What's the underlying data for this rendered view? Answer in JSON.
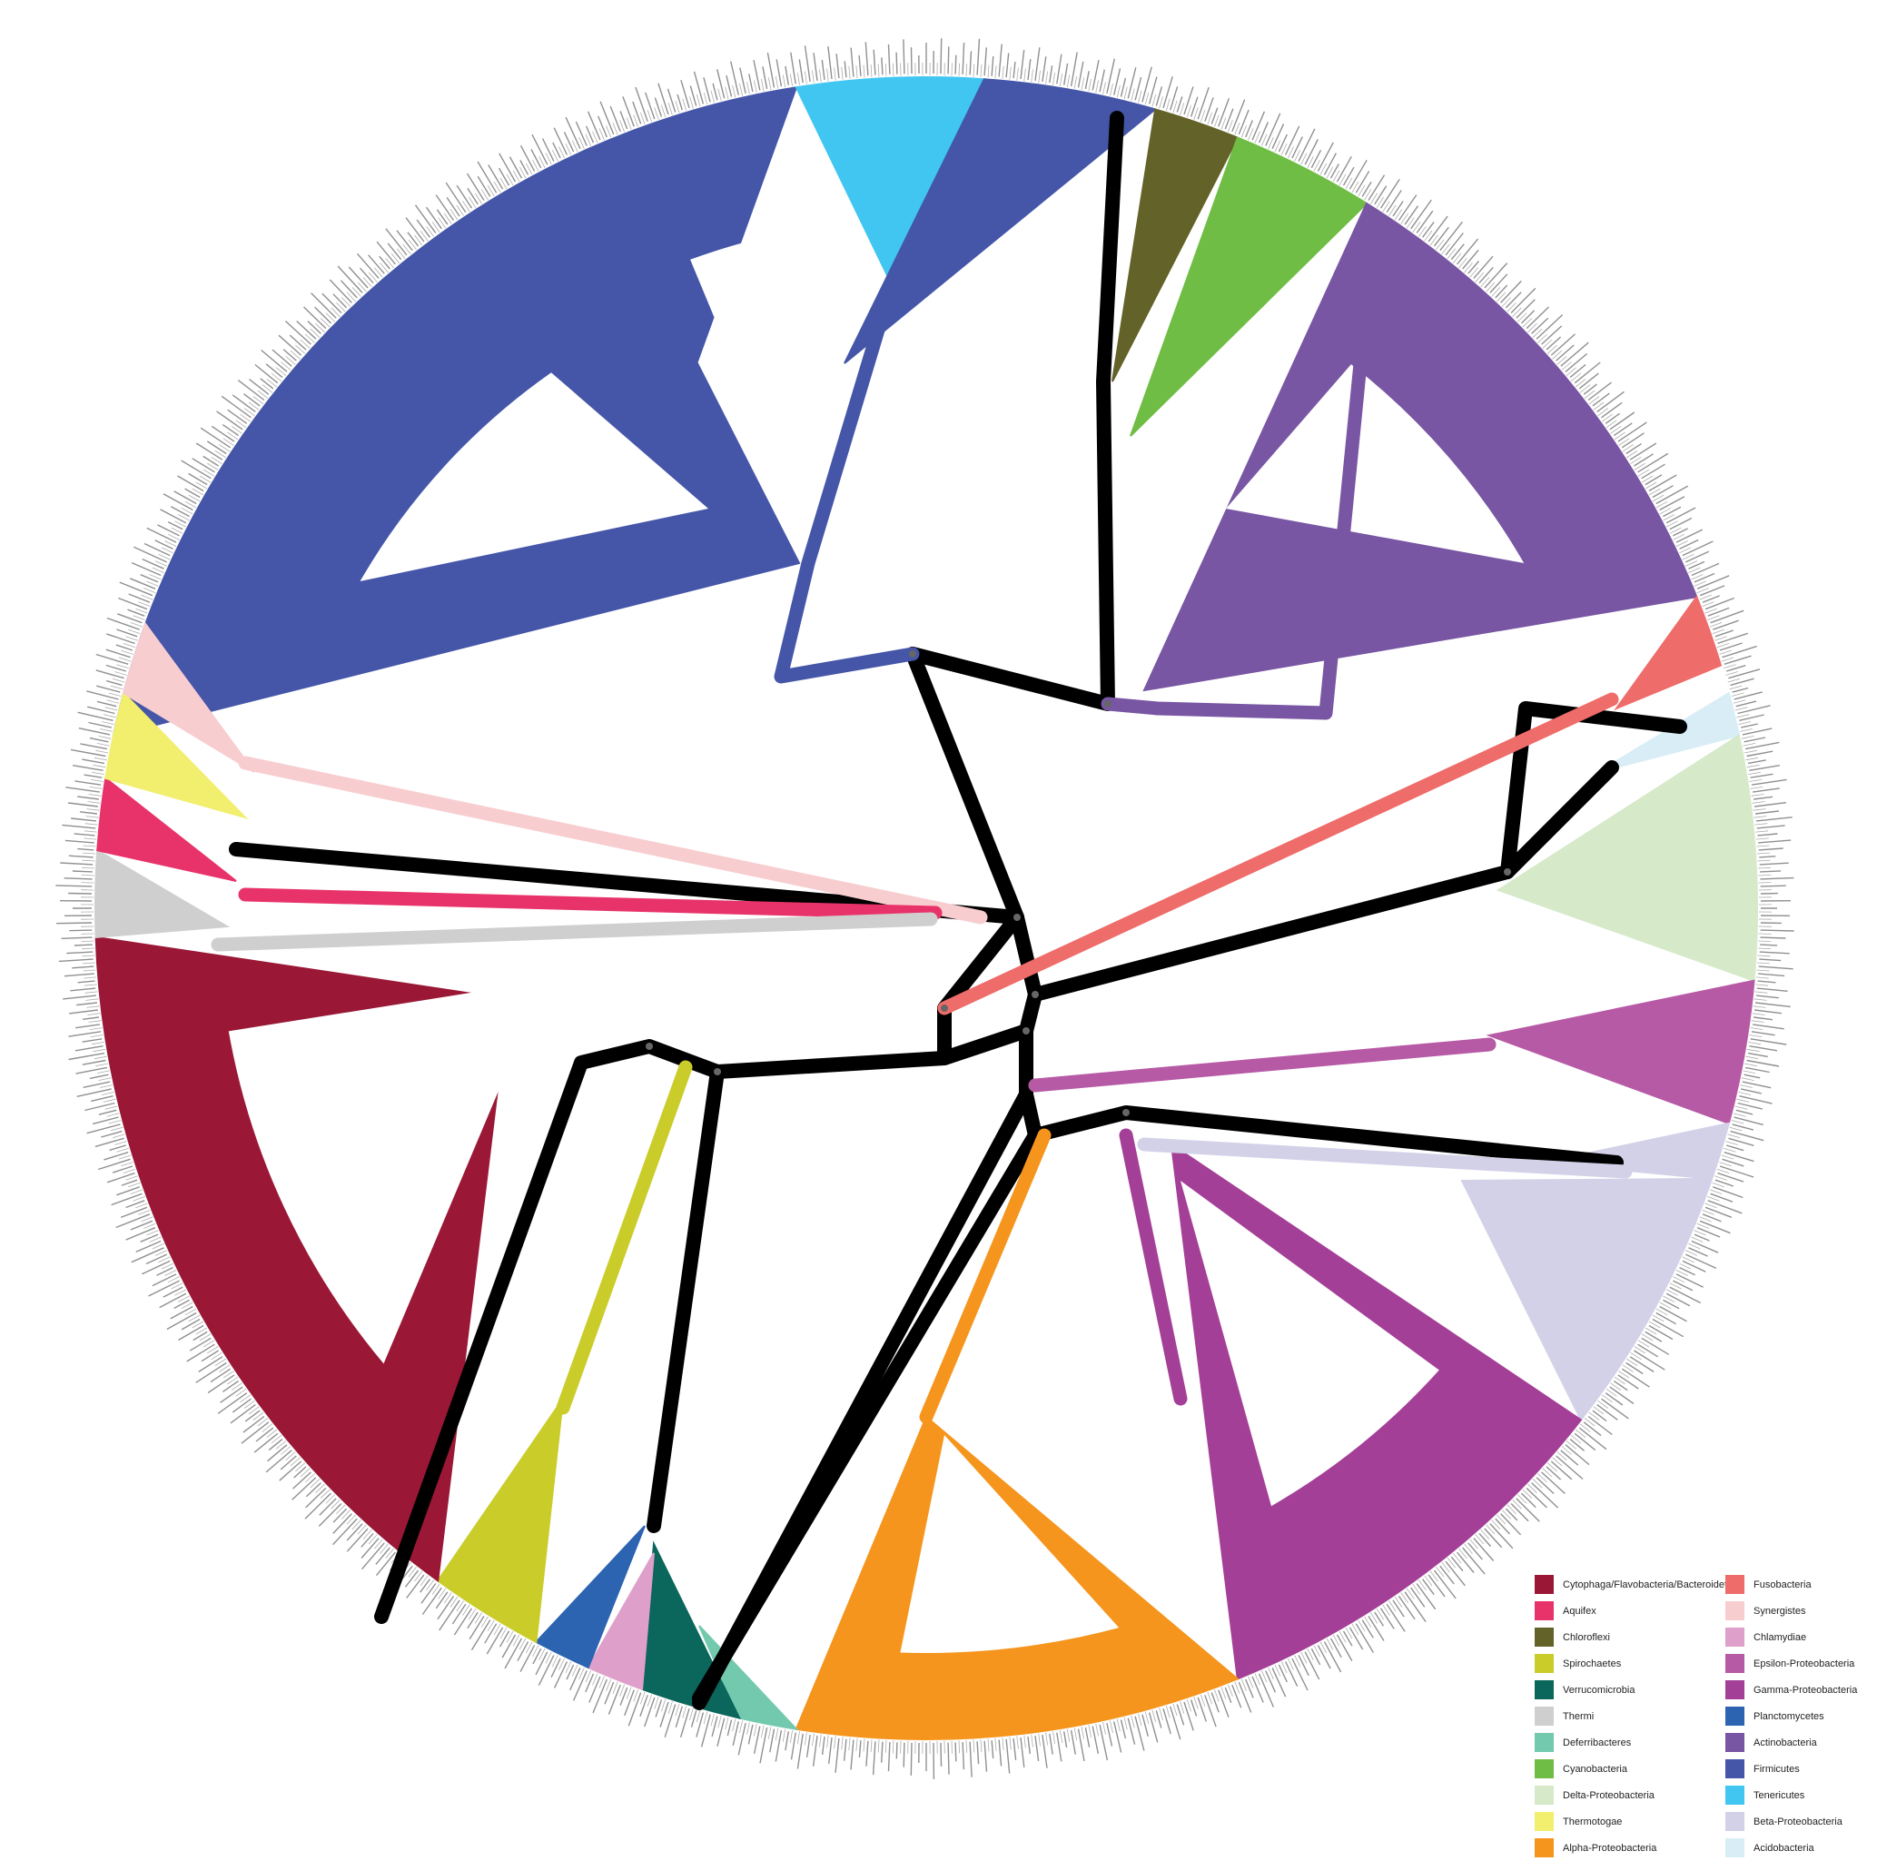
{
  "figure": {
    "type": "circular-phylogenetic-tree",
    "clade_colors": {
      "bacteroidetes": "#9a1836",
      "aquifex": "#e8336a",
      "chloroflexi": "#636228",
      "spirochaetes": "#cacc2a",
      "verrucomicrobia": "#0b665b",
      "thermi": "#cfcfcf",
      "deferribacteres": "#72c9ad",
      "cyanobacteria": "#6fbd44",
      "delta_proteobacteria": "#d6eac9",
      "thermotogae": "#f2ee6e",
      "alpha_proteobacteria": "#f5951d",
      "fusobacteria": "#ee6c6a",
      "synergistes": "#f8cdd0",
      "chlamydiae": "#dea0ca",
      "epsilon_proteobacteria": "#b75aa6",
      "gamma_proteobacteria": "#a43f97",
      "planctomycetes": "#2c64b1",
      "actinobacteria": "#7856a3",
      "firmicutes": "#4556a8",
      "tenericutes": "#41c6f1",
      "beta_proteobacteria": "#d3d1e8",
      "acidobacteria": "#d8edf5",
      "backbone": "#000000"
    }
  },
  "legend": {
    "items": [
      {
        "label": "Cytophaga/Flavobacteria/Bacteroidetes",
        "color": "#9a1836"
      },
      {
        "label": "Fusobacteria",
        "color": "#ee6c6a"
      },
      {
        "label": "Aquifex",
        "color": "#e8336a"
      },
      {
        "label": "Synergistes",
        "color": "#f8cdd0"
      },
      {
        "label": "Chloroflexi",
        "color": "#636228"
      },
      {
        "label": "Chlamydiae",
        "color": "#dea0ca"
      },
      {
        "label": "Spirochaetes",
        "color": "#cacc2a"
      },
      {
        "label": "Epsilon-Proteobacteria",
        "color": "#b75aa6"
      },
      {
        "label": "Verrucomicrobia",
        "color": "#0b665b"
      },
      {
        "label": "Gamma-Proteobacteria",
        "color": "#a43f97"
      },
      {
        "label": "Thermi",
        "color": "#cfcfcf"
      },
      {
        "label": "Planctomycetes",
        "color": "#2c64b1"
      },
      {
        "label": "Deferribacteres",
        "color": "#72c9ad"
      },
      {
        "label": "Actinobacteria",
        "color": "#7856a3"
      },
      {
        "label": "Cyanobacteria",
        "color": "#6fbd44"
      },
      {
        "label": "Firmicutes",
        "color": "#4556a8"
      },
      {
        "label": "Delta-Proteobacteria",
        "color": "#d6eac9"
      },
      {
        "label": "Tenericutes",
        "color": "#41c6f1"
      },
      {
        "label": "Thermotogae",
        "color": "#f2ee6e"
      },
      {
        "label": "Beta-Proteobacteria",
        "color": "#d3d1e8"
      },
      {
        "label": "Alpha-Proteobacteria",
        "color": "#f5951d"
      },
      {
        "label": "Acidobacteria",
        "color": "#d8edf5"
      }
    ]
  }
}
